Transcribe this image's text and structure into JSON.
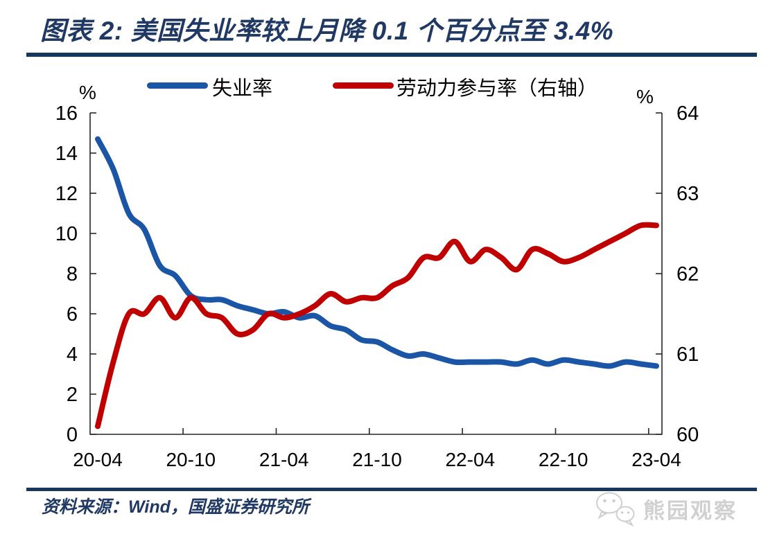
{
  "header": {
    "title": "图表 2: 美国失业率较上月降 0.1 个百分点至 3.4%"
  },
  "footer": {
    "source": "资料来源：Wind，国盛证券研究所",
    "watermark": "熊园观察"
  },
  "colors": {
    "accent_navy": "#1F3864",
    "rule_navy": "#17375D",
    "unemployment_blue": "#1B55A6",
    "participation_red": "#C00000",
    "axis_line": "#262626",
    "watermark_gray": "#D0D0D0"
  },
  "chart_data": {
    "type": "line",
    "grid": false,
    "legend_position": "top",
    "x": [
      "20-04",
      "20-05",
      "20-06",
      "20-07",
      "20-08",
      "20-09",
      "20-10",
      "20-11",
      "20-12",
      "21-01",
      "21-02",
      "21-03",
      "21-04",
      "21-05",
      "21-06",
      "21-07",
      "21-08",
      "21-09",
      "21-10",
      "21-11",
      "21-12",
      "22-01",
      "22-02",
      "22-03",
      "22-04",
      "22-05",
      "22-06",
      "22-07",
      "22-08",
      "22-09",
      "22-10",
      "22-11",
      "22-12",
      "23-01",
      "23-02",
      "23-03",
      "23-04"
    ],
    "x_tick_labels": [
      "20-04",
      "20-10",
      "21-04",
      "21-10",
      "22-04",
      "22-10",
      "23-04"
    ],
    "left_axis": {
      "unit": "%",
      "min": 0,
      "max": 16,
      "ticks": [
        0,
        2,
        4,
        6,
        8,
        10,
        12,
        14,
        16
      ]
    },
    "right_axis": {
      "unit": "%",
      "min": 60,
      "max": 64,
      "ticks": [
        60,
        61,
        62,
        63,
        64
      ]
    },
    "series": [
      {
        "name": "失业率",
        "axis": "left",
        "color": "#1B55A6",
        "values": [
          14.7,
          13.2,
          11.0,
          10.2,
          8.4,
          7.9,
          6.9,
          6.7,
          6.7,
          6.4,
          6.2,
          6.0,
          6.1,
          5.8,
          5.9,
          5.4,
          5.2,
          4.7,
          4.6,
          4.2,
          3.9,
          4.0,
          3.8,
          3.6,
          3.6,
          3.6,
          3.6,
          3.5,
          3.7,
          3.5,
          3.7,
          3.6,
          3.5,
          3.4,
          3.6,
          3.5,
          3.4
        ]
      },
      {
        "name": "劳动力参与率（右轴）",
        "axis": "right",
        "color": "#C00000",
        "values": [
          60.1,
          60.9,
          61.5,
          61.5,
          61.7,
          61.45,
          61.7,
          61.5,
          61.45,
          61.25,
          61.3,
          61.5,
          61.45,
          61.5,
          61.6,
          61.75,
          61.65,
          61.7,
          61.7,
          61.85,
          61.95,
          62.2,
          62.2,
          62.4,
          62.15,
          62.3,
          62.2,
          62.05,
          62.3,
          62.25,
          62.15,
          62.2,
          62.3,
          62.4,
          62.5,
          62.6,
          62.6
        ]
      }
    ]
  }
}
